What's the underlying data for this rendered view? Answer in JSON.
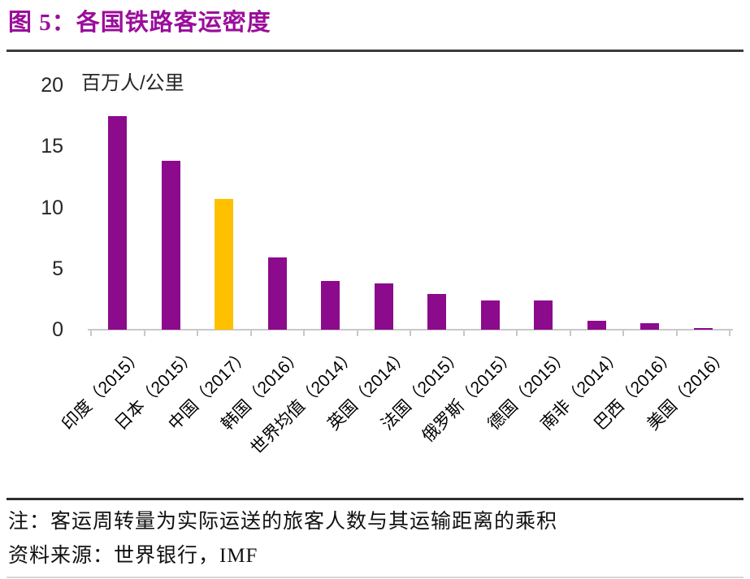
{
  "header": {
    "title": "图 5：各国铁路客运密度"
  },
  "chart_data": {
    "type": "bar",
    "title": "各国铁路客运密度",
    "unit_label": "百万人/公里",
    "categories": [
      "印度（2015）",
      "日本（2015）",
      "中国（2017）",
      "韩国（2016）",
      "世界均值（2014）",
      "英国（2014）",
      "法国（2015）",
      "俄罗斯（2015）",
      "德国（2015）",
      "南非（2014）",
      "巴西（2016）",
      "美国（2016）"
    ],
    "values": [
      17.5,
      13.8,
      10.7,
      5.9,
      4.0,
      3.8,
      2.9,
      2.4,
      2.4,
      0.7,
      0.5,
      0.1
    ],
    "highlight_index": 2,
    "colors": {
      "bar_default": "#8C0A8C",
      "bar_highlight": "#FFC000",
      "axis": "#c9c9c9",
      "title": "#9B0D9B"
    },
    "xlabel": "",
    "ylabel": "百万人/公里",
    "ylim": [
      0,
      20
    ],
    "yticks": [
      0,
      5,
      10,
      15,
      20
    ],
    "grid": false,
    "legend": "none"
  },
  "footer": {
    "note": "注：客运周转量为实际运送的旅客人数与其运输距离的乘积",
    "source": "资料来源：世界银行，IMF"
  }
}
